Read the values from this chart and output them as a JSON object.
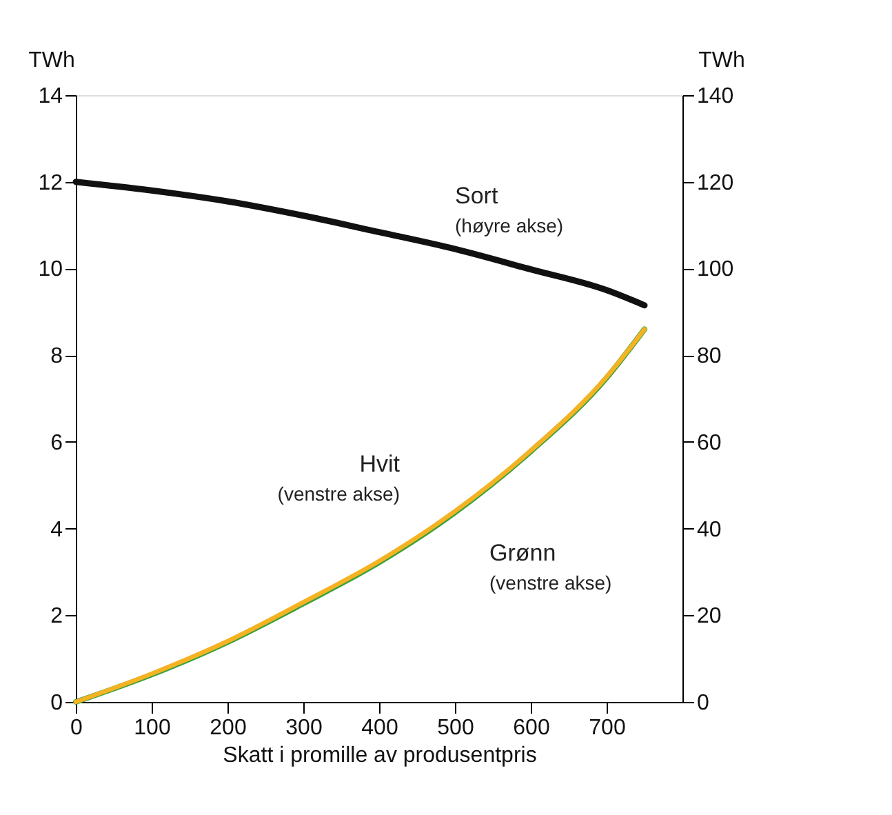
{
  "chart_data": {
    "type": "line",
    "xlabel": "Skatt i promille av produsentpris",
    "ylabel": "TWh",
    "y2label": "TWh",
    "xlim": [
      0,
      800
    ],
    "xticks": [
      0,
      100,
      200,
      300,
      400,
      500,
      600,
      700
    ],
    "ylim": [
      0,
      14
    ],
    "yticks": [
      0,
      2,
      4,
      6,
      8,
      10,
      12,
      14
    ],
    "y2lim": [
      0,
      140
    ],
    "y2ticks": [
      0,
      20,
      40,
      60,
      80,
      100,
      120,
      140
    ],
    "x": [
      0,
      100,
      200,
      300,
      400,
      500,
      600,
      700,
      750
    ],
    "series": [
      {
        "name": "Sort",
        "color": "#111111",
        "axis": "y2",
        "values": [
          120,
          118,
          115.5,
          112.2,
          108.4,
          104.5,
          99.8,
          95,
          91.5
        ]
      },
      {
        "name": "Grønn",
        "color": "#3aa13a",
        "values": [
          0,
          0.63,
          1.38,
          2.27,
          3.22,
          4.37,
          5.78,
          7.48,
          8.6
        ]
      },
      {
        "name": "Hvit",
        "color": "#f5b324",
        "values": [
          0,
          0.65,
          1.4,
          2.3,
          3.25,
          4.4,
          5.8,
          7.5,
          8.6
        ]
      }
    ],
    "annotations": [
      "(høyre akse)",
      "(venstre akse)",
      "(venstre akse)"
    ],
    "grid": false,
    "legend": false,
    "marker": "none",
    "line_style": "solid"
  }
}
